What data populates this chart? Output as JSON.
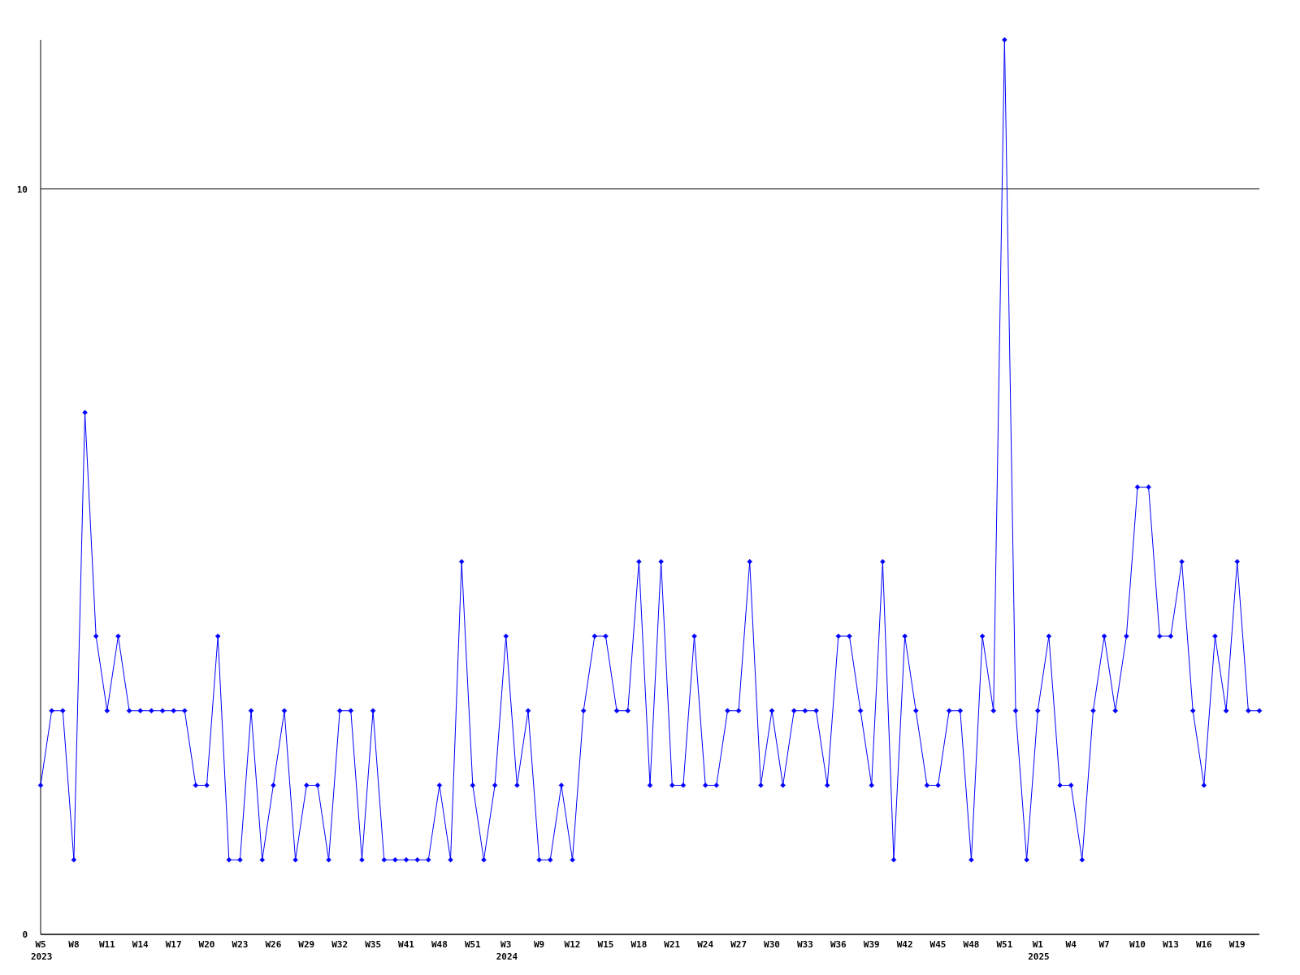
{
  "chart_data": {
    "type": "line",
    "categories": [
      "W5\n2023",
      null,
      null,
      "W8",
      null,
      null,
      "W11",
      null,
      null,
      "W14",
      null,
      null,
      "W17",
      null,
      null,
      "W20",
      null,
      null,
      "W23",
      null,
      null,
      "W26",
      null,
      null,
      "W29",
      null,
      null,
      "W32",
      null,
      null,
      "W35",
      null,
      null,
      "W41",
      null,
      null,
      "W48",
      null,
      null,
      "W51",
      null,
      null,
      "W3\n2024",
      null,
      null,
      "W9",
      null,
      null,
      "W12",
      null,
      null,
      "W15",
      null,
      null,
      "W18",
      null,
      null,
      "W21",
      null,
      null,
      "W24",
      null,
      null,
      "W27",
      null,
      null,
      "W30",
      null,
      null,
      "W33",
      null,
      null,
      "W36",
      null,
      null,
      "W39",
      null,
      null,
      "W42",
      null,
      null,
      "W45",
      null,
      null,
      "W48",
      null,
      null,
      "W51",
      null,
      null,
      "W1\n2025",
      null,
      null,
      "W4",
      null,
      null,
      "W7",
      null,
      null,
      "W10",
      null,
      null,
      "W13",
      null,
      null,
      "W16",
      null,
      null,
      "W19",
      null,
      null
    ],
    "series": [
      {
        "color": "#0000ff",
        "values": [
          2,
          3,
          3,
          1,
          7,
          4,
          3,
          4,
          3,
          3,
          3,
          3,
          3,
          3,
          2,
          2,
          4,
          1,
          1,
          3,
          1,
          2,
          3,
          1,
          2,
          2,
          1,
          3,
          3,
          1,
          3,
          1,
          1,
          1,
          1,
          1,
          2,
          1,
          5,
          2,
          1,
          2,
          4,
          2,
          3,
          1,
          1,
          2,
          1,
          3,
          4,
          4,
          3,
          3,
          5,
          2,
          5,
          2,
          2,
          4,
          2,
          2,
          3,
          3,
          5,
          2,
          3,
          2,
          3,
          3,
          3,
          2,
          4,
          4,
          3,
          2,
          5,
          1,
          4,
          3,
          2,
          2,
          3,
          3,
          1,
          4,
          3,
          12,
          3,
          1,
          3,
          4,
          2,
          2,
          1,
          3,
          4,
          3,
          4,
          6,
          6,
          4,
          4,
          5,
          3,
          2,
          4,
          3,
          5,
          3,
          3
        ]
      }
    ],
    "ylim": [
      0,
      12
    ],
    "yticks": [
      0,
      10
    ],
    "grid": "y",
    "marker": "diamond",
    "line_style": "solid"
  }
}
